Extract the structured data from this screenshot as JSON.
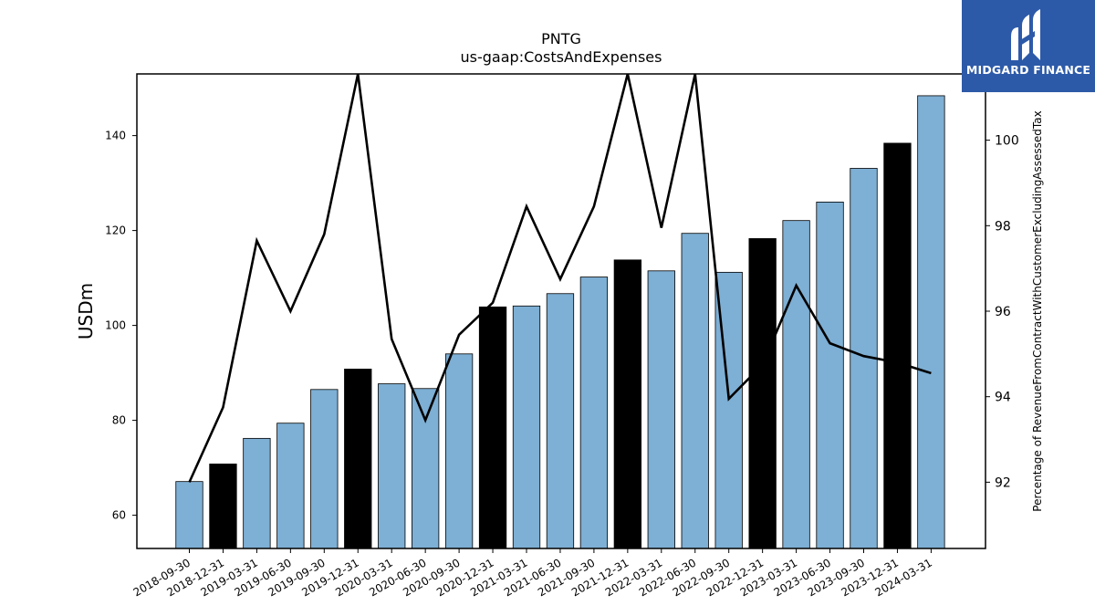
{
  "chart_data": {
    "type": "bar",
    "title": "PNTG",
    "subtitle": "us-gaap:CostsAndExpenses",
    "ylabel": "USDm",
    "y2label": "Percentage of RevenueFromContractWithCustomerExcludingAssessedTax",
    "ylim": [
      53,
      153
    ],
    "y2lim": [
      90.45,
      101.55
    ],
    "yticks": [
      60,
      80,
      100,
      120,
      140
    ],
    "y2ticks": [
      92,
      94,
      96,
      98,
      100
    ],
    "categories": [
      "2018-09-30",
      "2018-12-31",
      "2019-03-31",
      "2019-06-30",
      "2019-09-30",
      "2019-12-31",
      "2020-03-31",
      "2020-06-30",
      "2020-09-30",
      "2020-12-31",
      "2021-03-31",
      "2021-06-30",
      "2021-09-30",
      "2021-12-31",
      "2022-03-31",
      "2022-06-30",
      "2022-09-30",
      "2022-12-31",
      "2023-03-31",
      "2023-06-30",
      "2023-09-30",
      "2023-12-31",
      "2024-03-31"
    ],
    "series": [
      {
        "kind": "bar",
        "axis": "left",
        "values": [
          67.1,
          70.8,
          76.2,
          79.4,
          86.5,
          90.8,
          87.7,
          86.7,
          94.0,
          103.9,
          104.1,
          106.7,
          110.2,
          113.8,
          111.5,
          119.4,
          111.2,
          118.3,
          122.1,
          126.0,
          133.1,
          138.4,
          148.4
        ],
        "highlight": [
          false,
          true,
          false,
          false,
          false,
          true,
          false,
          false,
          false,
          true,
          false,
          false,
          false,
          true,
          false,
          false,
          false,
          true,
          false,
          false,
          false,
          true,
          false
        ]
      },
      {
        "kind": "line",
        "axis": "right",
        "values": [
          92.0,
          93.75,
          97.65,
          96.0,
          97.8,
          101.55,
          95.35,
          93.45,
          95.45,
          96.2,
          98.45,
          96.75,
          98.45,
          101.55,
          97.95,
          101.55,
          93.95,
          94.75,
          96.6,
          95.25,
          94.95,
          94.8,
          94.55
        ]
      }
    ],
    "colors": {
      "bar": "#7eafd4",
      "bar_highlight": "#000000",
      "line": "#000000",
      "axis": "#000000"
    },
    "grid": false,
    "legend": "none"
  },
  "logo": {
    "text": "MIDGARD FINANCE",
    "background": "#2d5aa8"
  }
}
